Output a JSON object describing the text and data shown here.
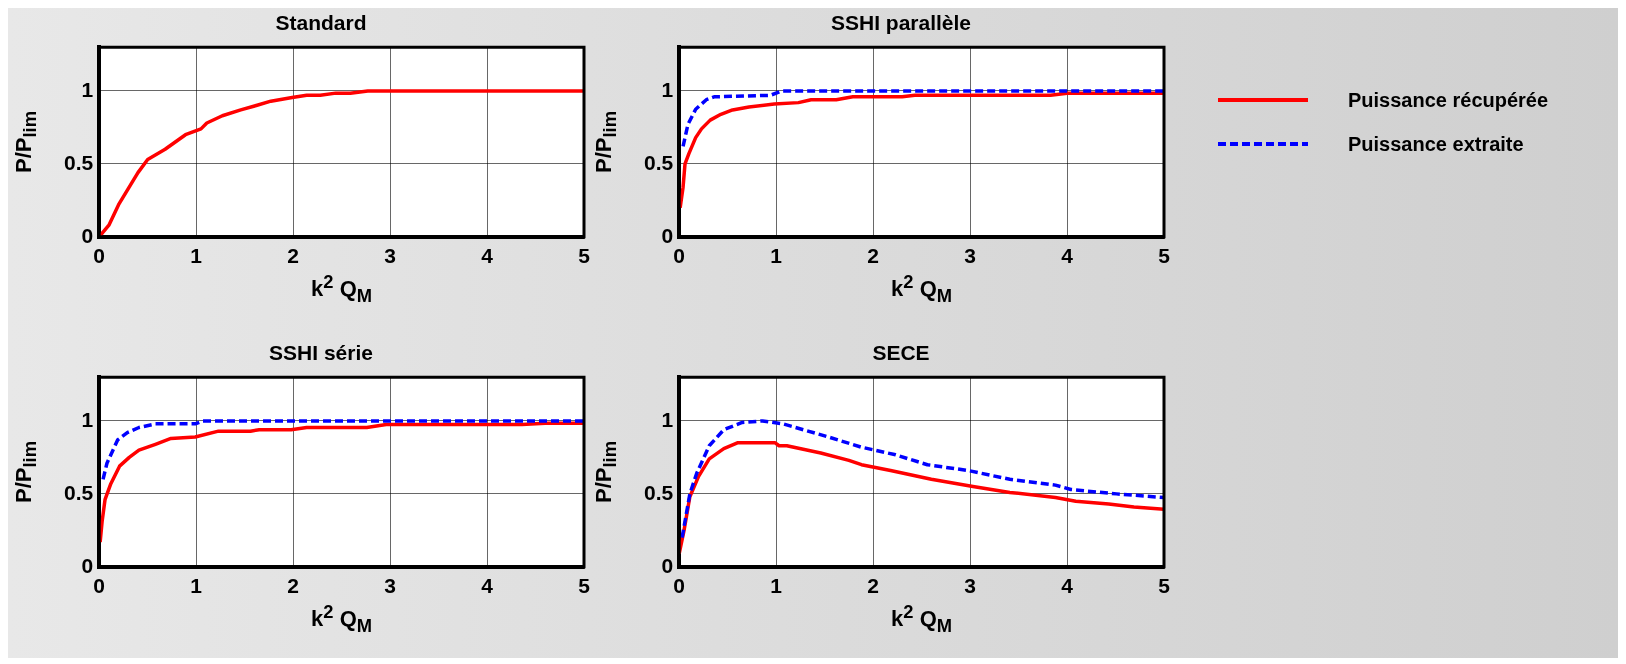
{
  "chart_data": [
    {
      "type": "line",
      "title": "Standard",
      "xlabel": "k$^{2}$ Q$_{M}$",
      "ylabel": "P/P$_{lim}$",
      "xlim": [
        0,
        5
      ],
      "xticks": [
        0,
        1,
        2,
        3,
        4,
        5
      ],
      "ylim": [
        0,
        1.3
      ],
      "yticks": [
        0,
        0.5,
        1
      ],
      "grid": true,
      "series": [
        {
          "color": "#ff0000",
          "line_style": "solid",
          "x": [
            0,
            0.1,
            0.2,
            0.3,
            0.4,
            0.5,
            0.68,
            0.89,
            1.05,
            1.11,
            1.27,
            1.46,
            1.62,
            1.77,
            1.99,
            2.14,
            2.28,
            2.44,
            2.59,
            2.77,
            5
          ],
          "values": [
            0,
            0.08,
            0.22,
            0.33,
            0.44,
            0.53,
            0.6,
            0.7,
            0.74,
            0.78,
            0.83,
            0.87,
            0.9,
            0.93,
            0.955,
            0.97,
            0.97,
            0.985,
            0.985,
            1,
            1
          ]
        }
      ]
    },
    {
      "type": "line",
      "title": "SSHI parallèle",
      "xlabel": "k$^{2}$ Q$_{M}$",
      "ylabel": "P/P$_{lim}$",
      "xlim": [
        0,
        5
      ],
      "xticks": [
        0,
        1,
        2,
        3,
        4,
        5
      ],
      "ylim": [
        0,
        1.3
      ],
      "yticks": [
        0,
        0.5,
        1
      ],
      "grid": true,
      "legend": "right",
      "series": [
        {
          "name": "Puissance récupérée",
          "color": "#ff0000",
          "line_style": "solid",
          "x": [
            0.01,
            0.04,
            0.06,
            0.1,
            0.17,
            0.23,
            0.32,
            0.43,
            0.55,
            0.72,
            0.98,
            1.23,
            1.36,
            1.62,
            1.79,
            2.3,
            2.43,
            3.83,
            4,
            5
          ],
          "values": [
            0.2,
            0.34,
            0.5,
            0.57,
            0.68,
            0.74,
            0.8,
            0.84,
            0.87,
            0.89,
            0.91,
            0.92,
            0.94,
            0.94,
            0.96,
            0.96,
            0.97,
            0.97,
            0.985,
            0.985
          ]
        },
        {
          "name": "Puissance extraite",
          "color": "#0000ff",
          "line_style": "dashed",
          "x": [
            0.04,
            0.09,
            0.17,
            0.28,
            0.36,
            0.94,
            1.06,
            5
          ],
          "values": [
            0.62,
            0.77,
            0.875,
            0.94,
            0.96,
            0.97,
            1,
            1
          ]
        }
      ]
    },
    {
      "type": "line",
      "title": "SSHI série",
      "xlabel": "k$^{2}$ Q$_{M}$",
      "ylabel": "P/P$_{lim}$",
      "xlim": [
        0,
        5
      ],
      "xticks": [
        0,
        1,
        2,
        3,
        4,
        5
      ],
      "ylim": [
        0,
        1.3
      ],
      "yticks": [
        0,
        0.5,
        1
      ],
      "grid": true,
      "series": [
        {
          "color": "#ff0000",
          "line_style": "solid",
          "x": [
            0.01,
            0.03,
            0.06,
            0.12,
            0.21,
            0.31,
            0.41,
            0.58,
            0.74,
            0.99,
            1.23,
            1.56,
            1.65,
            1.98,
            2.14,
            2.76,
            2.96,
            4.36,
            4.6,
            5
          ],
          "values": [
            0.17,
            0.31,
            0.46,
            0.57,
            0.69,
            0.75,
            0.8,
            0.84,
            0.88,
            0.89,
            0.93,
            0.93,
            0.94,
            0.94,
            0.955,
            0.955,
            0.975,
            0.975,
            0.985,
            0.985
          ]
        },
        {
          "color": "#0000ff",
          "line_style": "dashed",
          "x": [
            0.04,
            0.08,
            0.19,
            0.29,
            0.41,
            0.58,
            0.99,
            1.07,
            5
          ],
          "values": [
            0.6,
            0.71,
            0.87,
            0.92,
            0.955,
            0.98,
            0.98,
            1,
            1
          ]
        }
      ]
    },
    {
      "type": "line",
      "title": "SECE",
      "xlabel": "k$^{2}$ Q$_{M}$",
      "ylabel": "P/P$_{lim}$",
      "xlim": [
        0,
        5
      ],
      "xticks": [
        0,
        1,
        2,
        3,
        4,
        5
      ],
      "ylim": [
        0,
        1.3
      ],
      "yticks": [
        0,
        0.5,
        1
      ],
      "grid": true,
      "series": [
        {
          "color": "#ff0000",
          "line_style": "solid",
          "x": [
            0,
            0.05,
            0.11,
            0.2,
            0.31,
            0.46,
            0.6,
            0.99,
            1.03,
            1.11,
            1.46,
            1.75,
            1.88,
            2.18,
            2.6,
            3.03,
            3.41,
            3.88,
            4.09,
            4.43,
            4.69,
            5
          ],
          "values": [
            0.09,
            0.25,
            0.48,
            0.62,
            0.74,
            0.81,
            0.85,
            0.85,
            0.83,
            0.83,
            0.78,
            0.73,
            0.7,
            0.66,
            0.6,
            0.55,
            0.51,
            0.475,
            0.45,
            0.43,
            0.41,
            0.395
          ]
        },
        {
          "color": "#0000ff",
          "line_style": "dashed",
          "x": [
            0.03,
            0.11,
            0.18,
            0.31,
            0.46,
            0.65,
            0.86,
            1.07,
            1.54,
            1.88,
            2.22,
            2.56,
            2.98,
            3.41,
            3.88,
            4.04,
            4.51,
            5
          ],
          "values": [
            0.2,
            0.5,
            0.64,
            0.83,
            0.94,
            0.99,
            1,
            0.98,
            0.89,
            0.82,
            0.77,
            0.7,
            0.66,
            0.6,
            0.56,
            0.53,
            0.5,
            0.475
          ]
        }
      ]
    }
  ]
}
